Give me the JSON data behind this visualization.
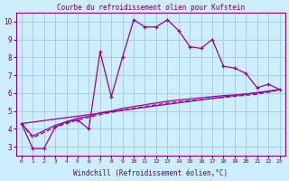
{
  "title": "Courbe du refroidissement olien pour Kufstein",
  "xlabel": "Windchill (Refroidissement éolien,°C)",
  "bg_color": "#cceeff",
  "grid_color": "#aaccdd",
  "line_color": "#990099",
  "xlim_min": -0.5,
  "xlim_max": 23.5,
  "ylim_min": 2.5,
  "ylim_max": 10.5,
  "xticks": [
    0,
    1,
    2,
    3,
    4,
    5,
    6,
    7,
    8,
    9,
    10,
    11,
    12,
    13,
    14,
    15,
    16,
    17,
    18,
    19,
    20,
    21,
    22,
    23
  ],
  "yticks": [
    3,
    4,
    5,
    6,
    7,
    8,
    9,
    10
  ],
  "series1_x": [
    0,
    1,
    2,
    3,
    4,
    5,
    6,
    7,
    8,
    9,
    10,
    11,
    12,
    13,
    14,
    15,
    16,
    17,
    18,
    19,
    20,
    21,
    22,
    23
  ],
  "series1_y": [
    4.3,
    2.9,
    2.9,
    4.1,
    4.4,
    4.5,
    4.0,
    8.3,
    5.8,
    8.0,
    10.1,
    9.7,
    9.7,
    10.1,
    9.5,
    8.6,
    8.5,
    9.0,
    7.5,
    7.4,
    7.1,
    6.3,
    6.5,
    6.2
  ],
  "series2_x": [
    0,
    1,
    2,
    3,
    4,
    5,
    6,
    7,
    8,
    9,
    10,
    11,
    12,
    13,
    14,
    15,
    16,
    17,
    18,
    19,
    20,
    21,
    22,
    23
  ],
  "series2_y": [
    4.3,
    3.6,
    3.9,
    4.2,
    4.4,
    4.6,
    4.7,
    4.9,
    5.0,
    5.15,
    5.25,
    5.35,
    5.45,
    5.55,
    5.62,
    5.68,
    5.74,
    5.8,
    5.86,
    5.9,
    5.95,
    6.0,
    6.1,
    6.2
  ],
  "series3_x": [
    0,
    1,
    2,
    3,
    4,
    5,
    6,
    7,
    8,
    9,
    10,
    11,
    12,
    13,
    14,
    15,
    16,
    17,
    18,
    19,
    20,
    21,
    22,
    23
  ],
  "series3_y": [
    4.3,
    3.5,
    3.8,
    4.1,
    4.3,
    4.5,
    4.65,
    4.8,
    4.92,
    5.05,
    5.15,
    5.25,
    5.35,
    5.45,
    5.52,
    5.58,
    5.64,
    5.7,
    5.76,
    5.82,
    5.88,
    5.94,
    6.05,
    6.2
  ],
  "series4_x": [
    0,
    23
  ],
  "series4_y": [
    4.3,
    6.2
  ]
}
